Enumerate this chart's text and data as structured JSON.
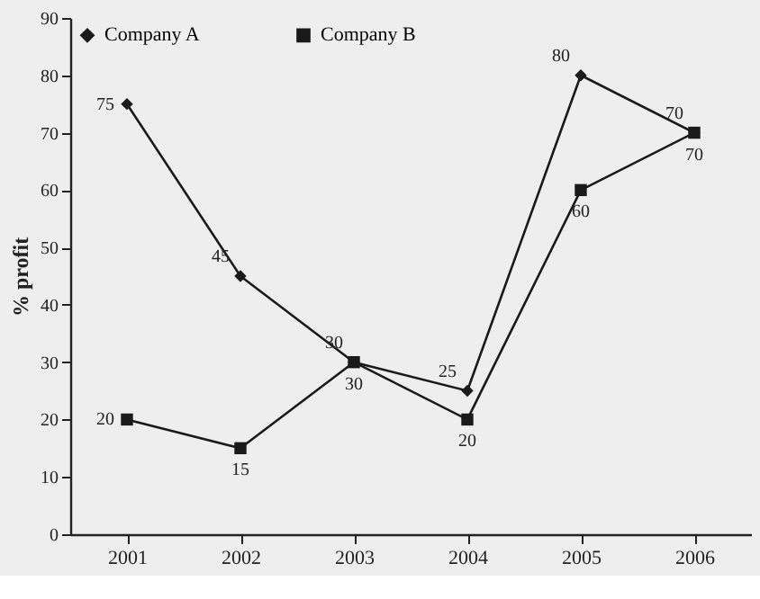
{
  "chart_data": {
    "type": "line",
    "ylabel": "% profit",
    "categories": [
      "2001",
      "2002",
      "2003",
      "2004",
      "2005",
      "2006"
    ],
    "series": [
      {
        "name": "Company A",
        "color": "#1a1a1a",
        "marker": "diamond",
        "values": [
          75,
          45,
          30,
          25,
          80,
          70
        ]
      },
      {
        "name": "Company B",
        "color": "#1a1a1a",
        "marker": "square",
        "values": [
          20,
          15,
          30,
          20,
          60,
          70
        ]
      }
    ],
    "ylim": [
      0,
      90
    ],
    "yticks": [
      0,
      10,
      20,
      30,
      40,
      50,
      60,
      70,
      80,
      90
    ],
    "grid": false,
    "legend": "top left",
    "data_labels": true,
    "line_style": "solid"
  }
}
